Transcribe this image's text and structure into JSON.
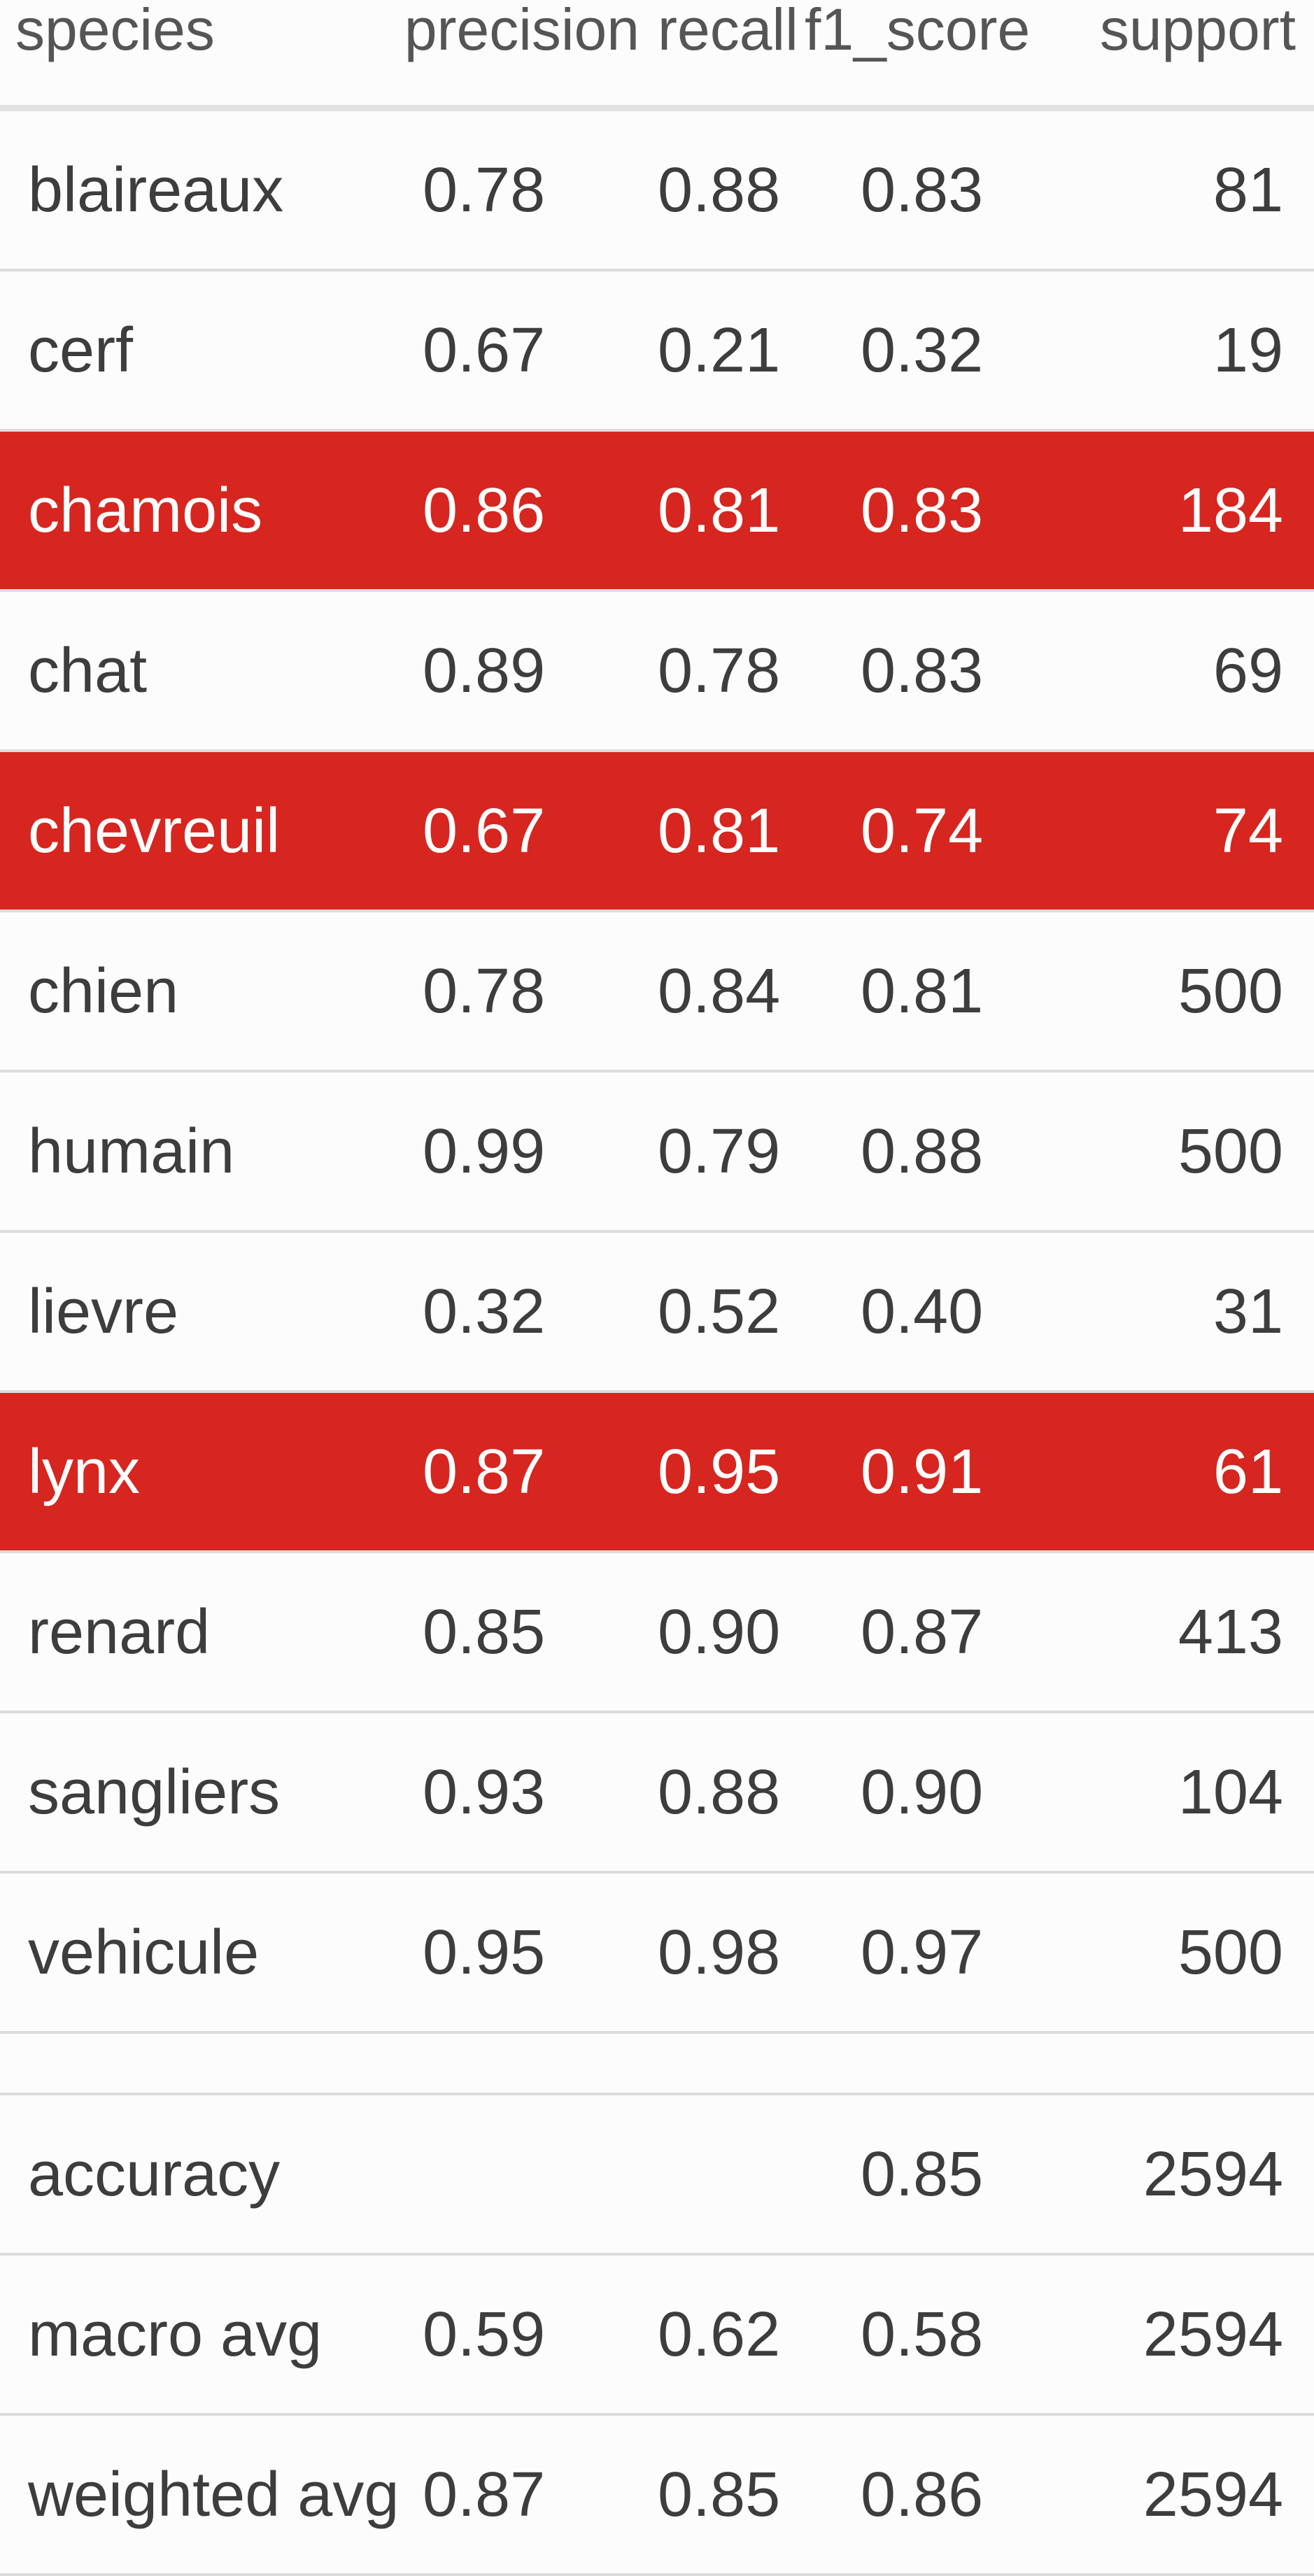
{
  "colors": {
    "highlight": "#d6261f",
    "text": "#3d3d3d",
    "header_text": "#555555",
    "background": "#fcfcfc"
  },
  "table": {
    "headers": {
      "species": "species",
      "precision": "precision",
      "recall": "recall",
      "f1_score": "f1_score",
      "support": "support"
    },
    "rows": [
      {
        "species": "blaireaux",
        "precision": "0.78",
        "recall": "0.88",
        "f1_score": "0.83",
        "support": "81",
        "highlighted": false
      },
      {
        "species": "cerf",
        "precision": "0.67",
        "recall": "0.21",
        "f1_score": "0.32",
        "support": "19",
        "highlighted": false
      },
      {
        "species": "chamois",
        "precision": "0.86",
        "recall": "0.81",
        "f1_score": "0.83",
        "support": "184",
        "highlighted": true
      },
      {
        "species": "chat",
        "precision": "0.89",
        "recall": "0.78",
        "f1_score": "0.83",
        "support": "69",
        "highlighted": false
      },
      {
        "species": "chevreuil",
        "precision": "0.67",
        "recall": "0.81",
        "f1_score": "0.74",
        "support": "74",
        "highlighted": true
      },
      {
        "species": "chien",
        "precision": "0.78",
        "recall": "0.84",
        "f1_score": "0.81",
        "support": "500",
        "highlighted": false
      },
      {
        "species": "humain",
        "precision": "0.99",
        "recall": "0.79",
        "f1_score": "0.88",
        "support": "500",
        "highlighted": false
      },
      {
        "species": "lievre",
        "precision": "0.32",
        "recall": "0.52",
        "f1_score": "0.40",
        "support": "31",
        "highlighted": false
      },
      {
        "species": "lynx",
        "precision": "0.87",
        "recall": "0.95",
        "f1_score": "0.91",
        "support": "61",
        "highlighted": true
      },
      {
        "species": "renard",
        "precision": "0.85",
        "recall": "0.90",
        "f1_score": "0.87",
        "support": "413",
        "highlighted": false
      },
      {
        "species": "sangliers",
        "precision": "0.93",
        "recall": "0.88",
        "f1_score": "0.90",
        "support": "104",
        "highlighted": false
      },
      {
        "species": "vehicule",
        "precision": "0.95",
        "recall": "0.98",
        "f1_score": "0.97",
        "support": "500",
        "highlighted": false
      }
    ],
    "summary": [
      {
        "species": "accuracy",
        "precision": "",
        "recall": "",
        "f1_score": "0.85",
        "support": "2594"
      },
      {
        "species": "macro avg",
        "precision": "0.59",
        "recall": "0.62",
        "f1_score": "0.58",
        "support": "2594"
      },
      {
        "species": "weighted avg",
        "precision": "0.87",
        "recall": "0.85",
        "f1_score": "0.86",
        "support": "2594"
      }
    ]
  }
}
